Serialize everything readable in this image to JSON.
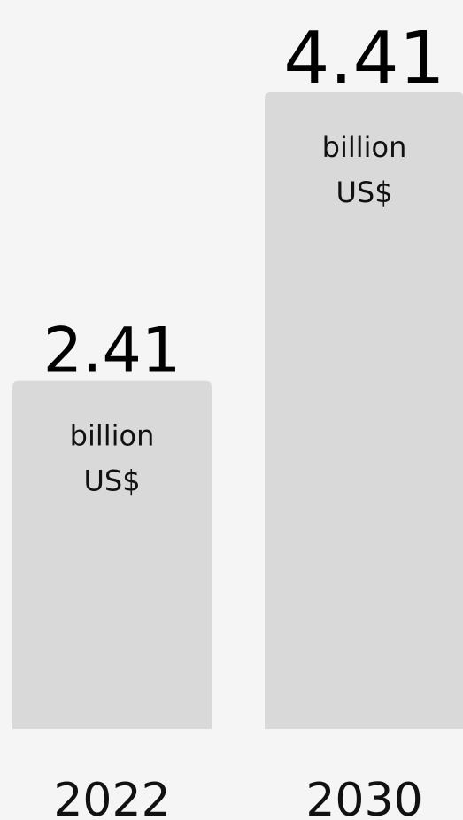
{
  "chart_data": {
    "type": "bar",
    "categories": [
      "2022",
      "2030"
    ],
    "values": [
      2.41,
      4.41
    ],
    "value_labels": [
      "2.41",
      "4.41"
    ],
    "unit_label_line1": "billion",
    "unit_label_line2": "US$",
    "title": "",
    "xlabel": "",
    "ylabel": "",
    "ylim": [
      0,
      4.41
    ],
    "grid": false,
    "legend": "none",
    "colors": {
      "background": "#f5f5f5",
      "bar": "#d9d9d9",
      "text": "#000000"
    }
  }
}
